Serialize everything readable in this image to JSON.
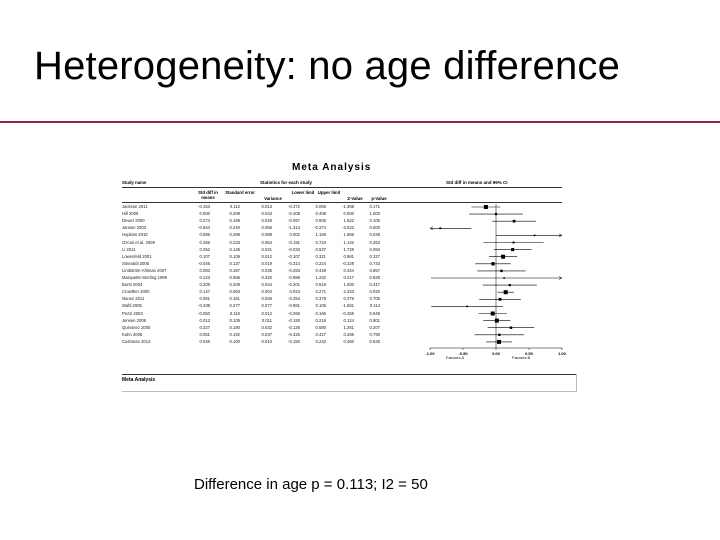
{
  "slide": {
    "title": "Heterogeneity: no age difference",
    "caption": "Difference in age p = 0.113; I2 = 50"
  },
  "meta": {
    "title": "Meta Analysis",
    "stats_header": "Statistics for each study",
    "plot_header": "Std diff in means and 95% CI",
    "footer": "Meta Analysis",
    "columns": {
      "study": "Study name",
      "smd": "Std diff in means",
      "se": "Standard error",
      "var": "Variance",
      "lower": "Lower limit",
      "upper": "Upper limit",
      "z": "Z-Value",
      "p": "p-Value"
    },
    "favours_a": "Favours A",
    "favours_b": "Favours B",
    "axis_ticks": [
      "-1.00",
      "-0.50",
      "0.00",
      "0.50",
      "1.00"
    ],
    "rows": [
      {
        "study": "Jackson 2011",
        "smd": "-0.153",
        "se": "0.112",
        "var": "0.013",
        "lo": "-0.372",
        "hi": "0.066",
        "z": "-1.368",
        "p": "0.171",
        "est": -0.153,
        "l": -0.372,
        "u": 0.066
      },
      {
        "study": "Hill 2009",
        "smd": "0.000",
        "se": "0.208",
        "var": "0.043",
        "lo": "-0.408",
        "hi": "0.408",
        "z": "0.000",
        "p": "1.000",
        "est": 0.0,
        "l": -0.408,
        "u": 0.408
      },
      {
        "study": "Dewer 2000",
        "smd": "0.274",
        "se": "0.169",
        "var": "0.029",
        "lo": "-0.057",
        "hi": "0.605",
        "z": "1.622",
        "p": "0.105",
        "est": 0.274,
        "l": -0.057,
        "u": 0.605
      },
      {
        "study": "Jansen 2003",
        "smd": "-0.844",
        "se": "0.240",
        "var": "0.058",
        "lo": "-1.314",
        "hi": "-0.374",
        "z": "-3.522",
        "p": "0.000",
        "est": -0.844,
        "l": -1.314,
        "u": -0.374
      },
      {
        "study": "Hopkins 2010",
        "smd": "0.585",
        "se": "0.298",
        "var": "0.089",
        "lo": "0.002",
        "hi": "1.168",
        "z": "1.966",
        "p": "0.049",
        "est": 0.585,
        "l": 0.002,
        "u": 1.168
      },
      {
        "study": "Ozcan et al. 2009",
        "smd": "0.266",
        "se": "0.233",
        "var": "0.054",
        "lo": "-0.191",
        "hi": "0.723",
        "z": "1.142",
        "p": "0.253",
        "est": 0.266,
        "l": -0.191,
        "u": 0.723
      },
      {
        "study": "Li 2011",
        "smd": "0.252",
        "se": "0.146",
        "var": "0.021",
        "lo": "-0.033",
        "hi": "0.537",
        "z": "1.728",
        "p": "0.084",
        "est": 0.252,
        "l": -0.033,
        "u": 0.537
      },
      {
        "study": "Lowenfeld 2001",
        "smd": "0.107",
        "se": "0.109",
        "var": "0.012",
        "lo": "-0.107",
        "hi": "0.321",
        "z": "0.981",
        "p": "0.327",
        "est": 0.107,
        "l": -0.107,
        "u": 0.321
      },
      {
        "study": "Smeraldi 2005",
        "smd": "-0.045",
        "se": "0.137",
        "var": "0.019",
        "lo": "-0.314",
        "hi": "0.224",
        "z": "-0.328",
        "p": "0.743",
        "est": -0.045,
        "l": -0.314,
        "u": 0.224
      },
      {
        "study": "Lindström-Ahlman 2007",
        "smd": "0.083",
        "se": "0.187",
        "var": "0.035",
        "lo": "-0.283",
        "hi": "0.449",
        "z": "0.444",
        "p": "0.657",
        "est": 0.083,
        "l": -0.283,
        "u": 0.449
      },
      {
        "study": "Marquette-Sterling 1999",
        "smd": "0.123",
        "se": "0.566",
        "var": "0.320",
        "lo": "-0.986",
        "hi": "1.232",
        "z": "0.217",
        "p": "0.828",
        "est": 0.123,
        "l": -0.986,
        "u": 1.232
      },
      {
        "study": "Burst 2003",
        "smd": "0.209",
        "se": "0.209",
        "var": "0.044",
        "lo": "-0.201",
        "hi": "0.619",
        "z": "1.000",
        "p": "0.317",
        "est": 0.209,
        "l": -0.201,
        "u": 0.619
      },
      {
        "study": "Crowther 2000",
        "smd": "0.147",
        "se": "0.063",
        "var": "0.004",
        "lo": "0.023",
        "hi": "0.271",
        "z": "2.333",
        "p": "0.020",
        "est": 0.147,
        "l": 0.023,
        "u": 0.271
      },
      {
        "study": "Nunez 2011",
        "smd": "0.061",
        "se": "0.161",
        "var": "0.026",
        "lo": "-0.254",
        "hi": "0.376",
        "z": "0.379",
        "p": "0.705",
        "est": 0.061,
        "l": -0.254,
        "u": 0.376
      },
      {
        "study": "Wahl 2005",
        "smd": "-0.438",
        "se": "0.277",
        "var": "0.077",
        "lo": "-0.981",
        "hi": "0.105",
        "z": "-1.581",
        "p": "0.114",
        "est": -0.438,
        "l": -0.981,
        "u": 0.105
      },
      {
        "study": "Pezzi 2003",
        "smd": "-0.050",
        "se": "0.110",
        "var": "0.012",
        "lo": "-0.266",
        "hi": "0.166",
        "z": "-0.455",
        "p": "0.649",
        "est": -0.05,
        "l": -0.266,
        "u": 0.166
      },
      {
        "study": "Jensen 2009",
        "smd": "0.013",
        "se": "0.105",
        "var": "0.011",
        "lo": "-0.193",
        "hi": "0.219",
        "z": "0.124",
        "p": "0.901",
        "est": 0.013,
        "l": -0.193,
        "u": 0.219
      },
      {
        "study": "Quinonez 2005",
        "smd": "0.227",
        "se": "0.180",
        "var": "0.032",
        "lo": "-0.126",
        "hi": "0.580",
        "z": "1.261",
        "p": "0.207",
        "est": 0.227,
        "l": -0.126,
        "u": 0.58
      },
      {
        "study": "Kahn 2006",
        "smd": "0.051",
        "se": "0.192",
        "var": "0.037",
        "lo": "-0.325",
        "hi": "0.427",
        "z": "0.266",
        "p": "0.790",
        "est": 0.051,
        "l": -0.325,
        "u": 0.427
      },
      {
        "study": "Cushman 2012",
        "smd": "0.046",
        "se": "0.100",
        "var": "0.010",
        "lo": "-0.150",
        "hi": "0.242",
        "z": "0.460",
        "p": "0.645",
        "est": 0.046,
        "l": -0.15,
        "u": 0.242
      }
    ]
  },
  "colors": {
    "rule": "#8b2a3c",
    "text": "#000000"
  }
}
